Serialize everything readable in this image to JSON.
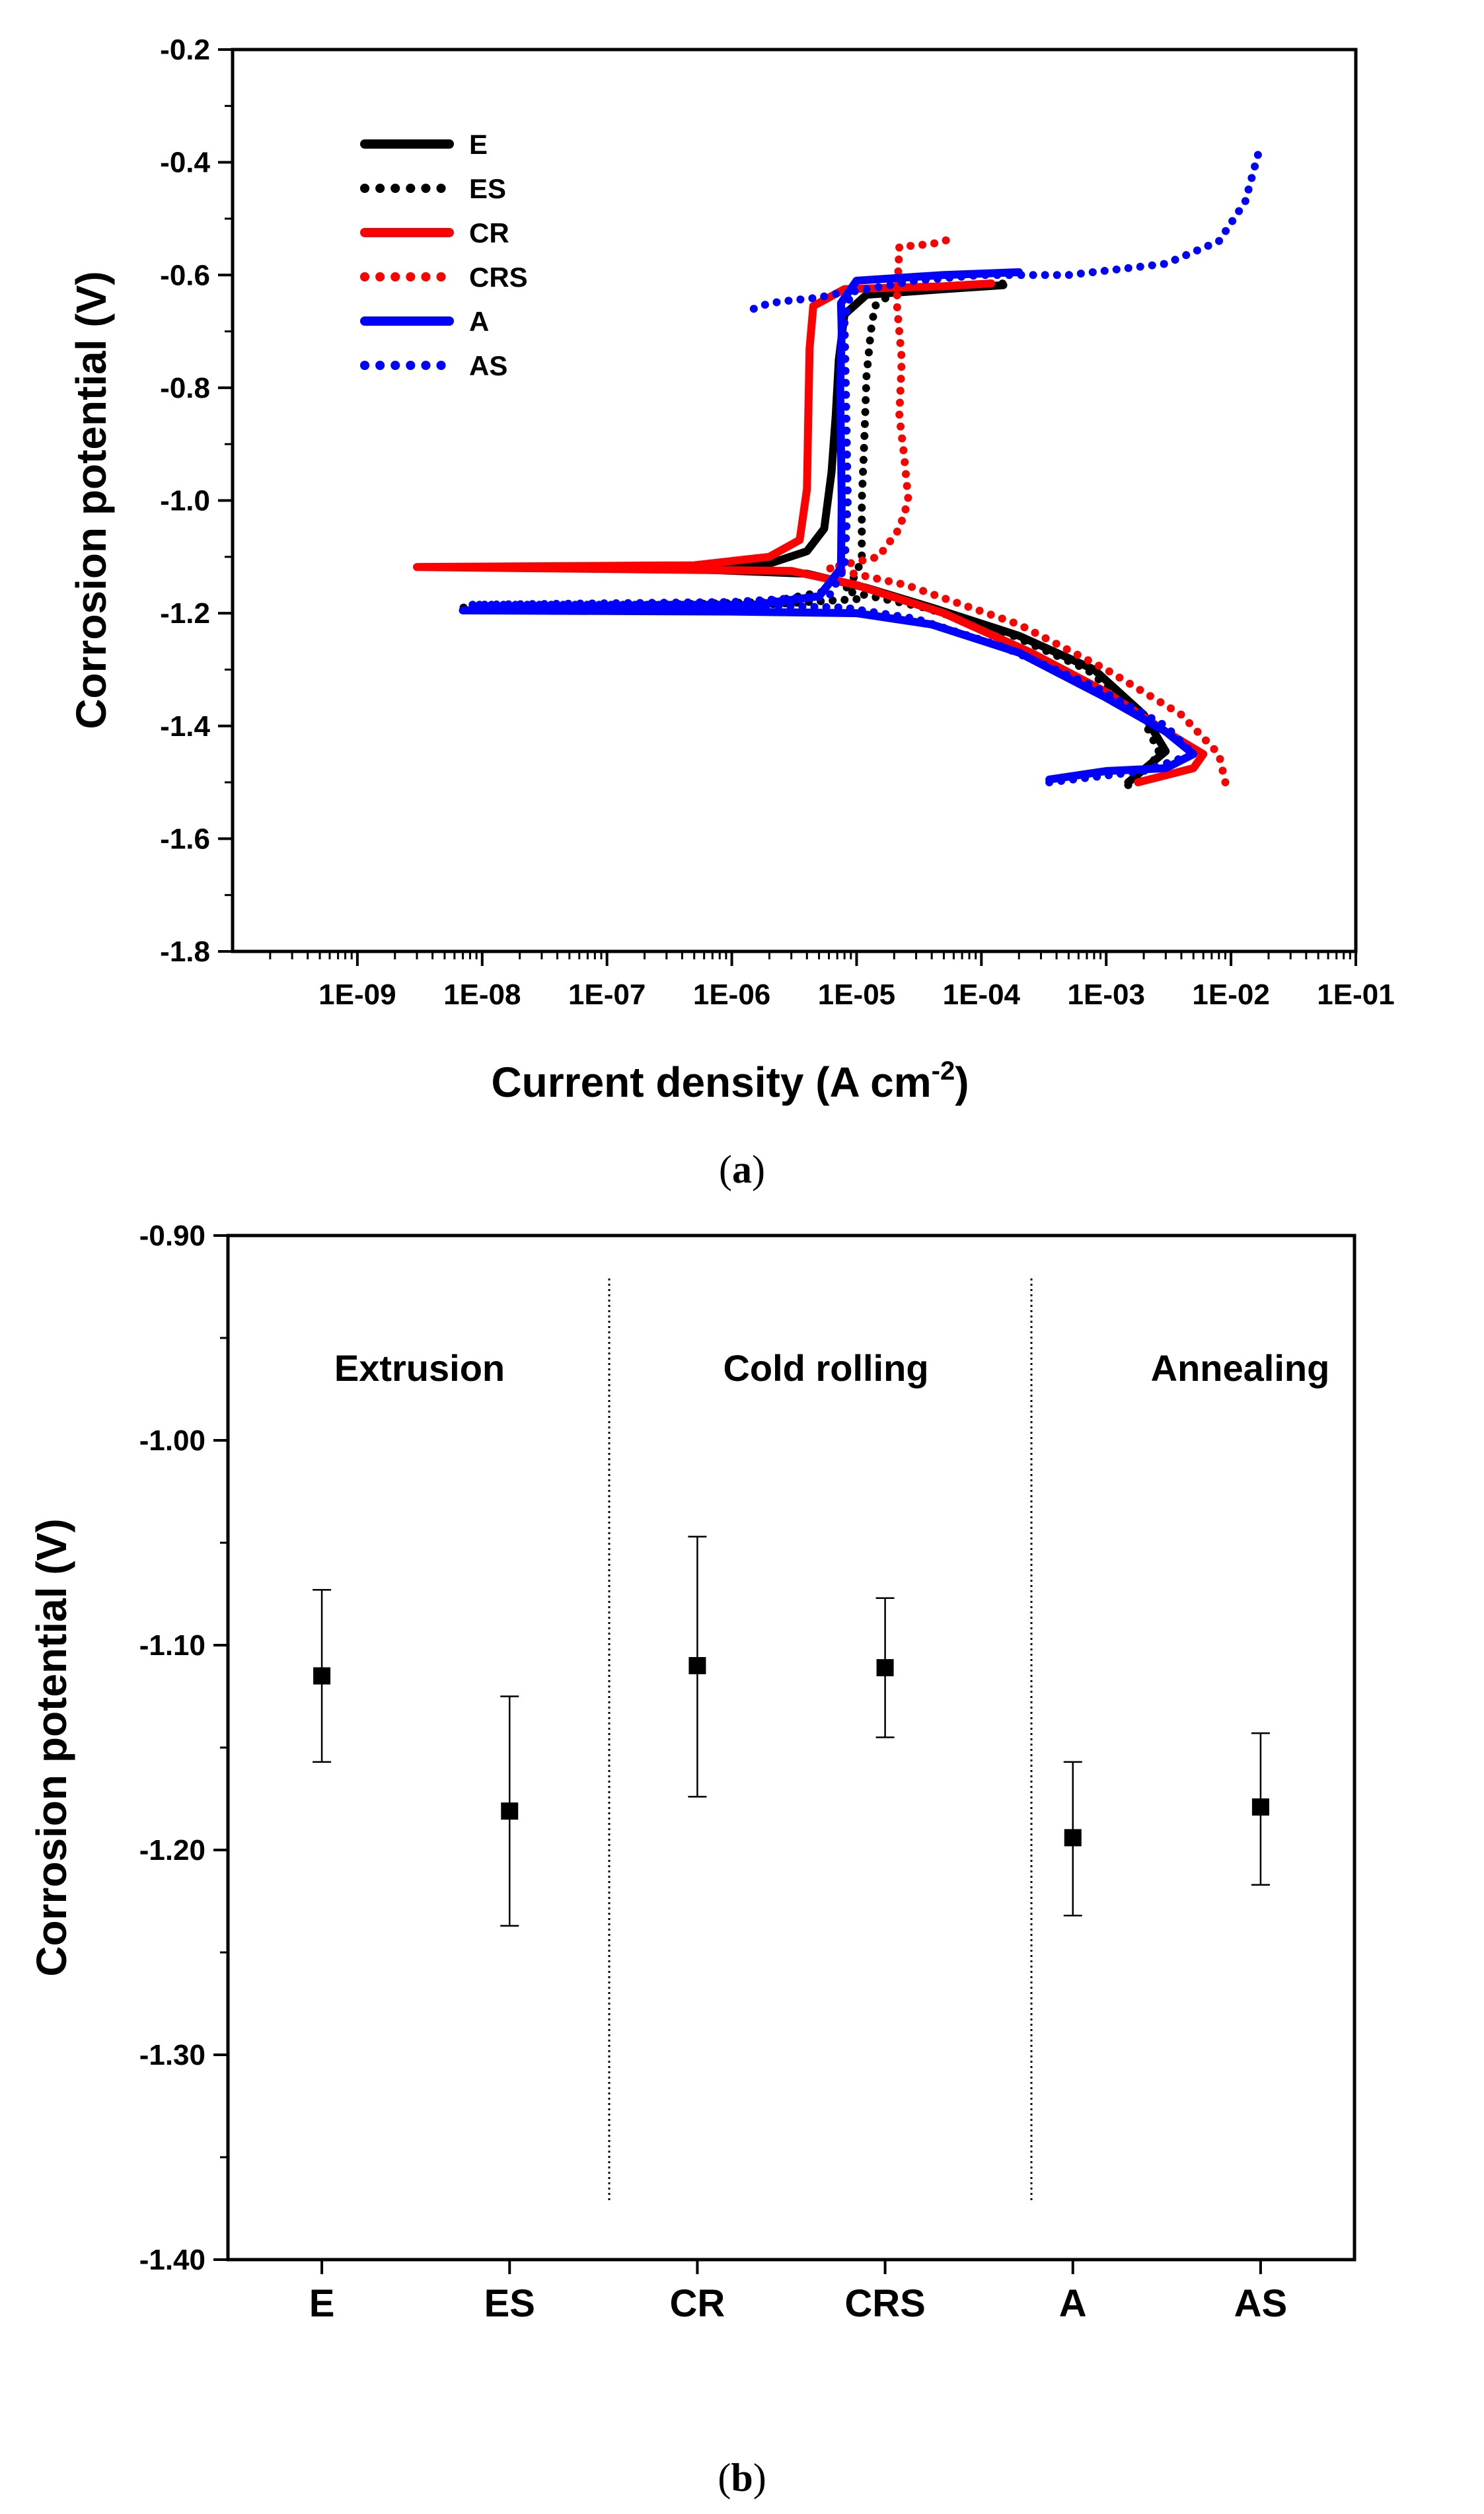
{
  "colors": {
    "E": "#000000",
    "ES": "#000000",
    "CR": "#ff0000",
    "CRS": "#ff0000",
    "A": "#0000ff",
    "AS": "#0000ff",
    "axis": "#000000"
  },
  "chart_data": [
    {
      "panel": "a",
      "caption": {
        "open": "(",
        "letter": "a",
        "close": ")"
      },
      "type": "line",
      "xlabel": "Current density (A cm",
      "xlabel_sup": "-2",
      "xlabel_end": ")",
      "ylabel": "Corrosion potential (V)",
      "xscale": "log",
      "xlim": [
        1e-10,
        0.1
      ],
      "ylim": [
        -1.8,
        -0.2
      ],
      "xticks": [
        1e-09,
        1e-08,
        1e-07,
        1e-06,
        1e-05,
        0.0001,
        0.001,
        0.01,
        0.1
      ],
      "xtick_labels": [
        "1E-09",
        "1E-08",
        "1E-07",
        "1E-06",
        "1E-05",
        "1E-04",
        "1E-03",
        "1E-02",
        "1E-01"
      ],
      "yticks": [
        -1.8,
        -1.6,
        -1.4,
        -1.2,
        -1.0,
        -0.8,
        -0.6,
        -0.4,
        -0.2
      ],
      "ytick_labels": [
        "-1.8",
        "-1.6",
        "-1.4",
        "-1.2",
        "-1.0",
        "-0.8",
        "-0.6",
        "-0.4",
        "-0.2"
      ],
      "legend_position": "top-left",
      "series": [
        {
          "name": "E",
          "style": "solid",
          "points": [
            [
              0.0015,
              -1.5
            ],
            [
              0.003,
              -1.445
            ],
            [
              0.002,
              -1.38
            ],
            [
              0.0008,
              -1.3
            ],
            [
              0.0002,
              -1.24
            ],
            [
              4e-05,
              -1.19
            ],
            [
              1.2e-05,
              -1.155
            ],
            [
              4e-06,
              -1.13
            ],
            [
              5e-07,
              -1.122
            ],
            [
              3e-08,
              -1.12
            ],
            [
              8e-07,
              -1.118
            ],
            [
              2e-06,
              -1.112
            ],
            [
              4e-06,
              -1.09
            ],
            [
              5.5e-06,
              -1.05
            ],
            [
              6.3e-06,
              -0.95
            ],
            [
              6.8e-06,
              -0.85
            ],
            [
              7.2e-06,
              -0.75
            ],
            [
              8e-06,
              -0.67
            ],
            [
              1.2e-05,
              -0.635
            ],
            [
              5e-05,
              -0.625
            ],
            [
              0.00015,
              -0.618
            ]
          ]
        },
        {
          "name": "ES",
          "style": "dotted",
          "points": [
            [
              0.0015,
              -1.505
            ],
            [
              0.0027,
              -1.45
            ],
            [
              0.0019,
              -1.38
            ],
            [
              0.0007,
              -1.3
            ],
            [
              0.00018,
              -1.24
            ],
            [
              3.5e-05,
              -1.19
            ],
            [
              8e-06,
              -1.16
            ],
            [
              1e-05,
              -1.13
            ],
            [
              1.1e-05,
              -1.1
            ],
            [
              1.1e-05,
              -1.0
            ],
            [
              1.15e-05,
              -0.9
            ],
            [
              1.2e-05,
              -0.78
            ],
            [
              1.3e-05,
              -0.7
            ],
            [
              1.4e-05,
              -0.655
            ],
            [
              2e-05,
              -0.63
            ],
            [
              6e-05,
              -0.62
            ],
            [
              0.00015,
              -0.615
            ]
          ]
        },
        {
          "name": "ES-low",
          "style": "dotted",
          "color_key": "ES",
          "points": [
            [
              1e-05,
              -1.175
            ],
            [
              1e-06,
              -1.188
            ],
            [
              1e-07,
              -1.19
            ],
            [
              7e-09,
              -1.19
            ],
            [
              1e-07,
              -1.187
            ],
            [
              2e-06,
              -1.18
            ],
            [
              6e-06,
              -1.16
            ]
          ]
        },
        {
          "name": "CR",
          "style": "solid",
          "points": [
            [
              0.0018,
              -1.5
            ],
            [
              0.005,
              -1.475
            ],
            [
              0.006,
              -1.45
            ],
            [
              0.003,
              -1.41
            ],
            [
              0.001,
              -1.34
            ],
            [
              0.00025,
              -1.27
            ],
            [
              5e-05,
              -1.2
            ],
            [
              1e-05,
              -1.15
            ],
            [
              3e-06,
              -1.125
            ],
            [
              3e-09,
              -1.118
            ],
            [
              5e-07,
              -1.115
            ],
            [
              2e-06,
              -1.1
            ],
            [
              3.5e-06,
              -1.07
            ],
            [
              4e-06,
              -0.98
            ],
            [
              4.1e-06,
              -0.85
            ],
            [
              4.2e-06,
              -0.73
            ],
            [
              4.5e-06,
              -0.655
            ],
            [
              8e-06,
              -0.625
            ],
            [
              5e-05,
              -0.62
            ],
            [
              0.00012,
              -0.615
            ]
          ]
        },
        {
          "name": "CRS",
          "style": "dotted",
          "points": [
            [
              0.009,
              -1.5
            ],
            [
              0.008,
              -1.45
            ],
            [
              0.004,
              -1.38
            ],
            [
              0.001,
              -1.3
            ],
            [
              0.0002,
              -1.22
            ],
            [
              2.5e-05,
              -1.15
            ],
            [
              6e-06,
              -1.12
            ],
            [
              1.5e-05,
              -1.1
            ],
            [
              2.2e-05,
              -1.05
            ],
            [
              2.6e-05,
              -1.0
            ],
            [
              2.4e-05,
              -0.92
            ],
            [
              2.2e-05,
              -0.85
            ],
            [
              2.3e-05,
              -0.75
            ],
            [
              2.1e-05,
              -0.65
            ],
            [
              2.2e-05,
              -0.55
            ],
            [
              4e-05,
              -0.545
            ],
            [
              6e-05,
              -0.535
            ]
          ]
        },
        {
          "name": "A",
          "style": "solid",
          "points": [
            [
              0.00035,
              -1.495
            ],
            [
              0.001,
              -1.48
            ],
            [
              0.003,
              -1.475
            ],
            [
              0.005,
              -1.45
            ],
            [
              0.003,
              -1.41
            ],
            [
              0.001,
              -1.35
            ],
            [
              0.0002,
              -1.27
            ],
            [
              4e-05,
              -1.22
            ],
            [
              1e-05,
              -1.2
            ],
            [
              1e-06,
              -1.197
            ],
            [
              7e-09,
              -1.195
            ],
            [
              1e-06,
              -1.19
            ],
            [
              5e-06,
              -1.17
            ],
            [
              7.5e-06,
              -1.12
            ],
            [
              7.6e-06,
              -1.0
            ],
            [
              7.5e-06,
              -0.9
            ],
            [
              7.4e-06,
              -0.8
            ],
            [
              7.6e-06,
              -0.7
            ],
            [
              7.5e-06,
              -0.65
            ],
            [
              1e-05,
              -0.61
            ],
            [
              5e-05,
              -0.6
            ],
            [
              0.0002,
              -0.595
            ]
          ]
        },
        {
          "name": "AS",
          "style": "dotted",
          "points": [
            [
              0.00035,
              -1.5
            ],
            [
              0.002,
              -1.48
            ],
            [
              0.005,
              -1.45
            ],
            [
              0.003,
              -1.4
            ],
            [
              0.0008,
              -1.33
            ],
            [
              0.00015,
              -1.26
            ],
            [
              3e-05,
              -1.21
            ],
            [
              8e-06,
              -1.19
            ],
            [
              1e-06,
              -1.185
            ],
            [
              8e-09,
              -1.185
            ],
            [
              1e-06,
              -1.18
            ],
            [
              6e-06,
              -1.17
            ],
            [
              8e-06,
              -1.12
            ],
            [
              8.5e-06,
              -1.0
            ],
            [
              8.2e-06,
              -0.8
            ],
            [
              8e-06,
              -0.68
            ],
            [
              9e-06,
              -0.63
            ],
            [
              3e-05,
              -0.61
            ],
            [
              0.0001,
              -0.6
            ],
            [
              0.0005,
              -0.6
            ],
            [
              0.003,
              -0.58
            ],
            [
              0.008,
              -0.54
            ],
            [
              0.013,
              -0.47
            ],
            [
              0.017,
              -0.375
            ]
          ]
        },
        {
          "name": "AS-knee",
          "style": "dotted",
          "color_key": "AS",
          "points": [
            [
              1.5e-06,
              -0.66
            ],
            [
              2e-06,
              -0.65
            ],
            [
              3e-06,
              -0.645
            ],
            [
              5e-06,
              -0.64
            ],
            [
              8e-06,
              -0.63
            ]
          ]
        }
      ],
      "legend": [
        "E",
        "ES",
        "CR",
        "CRS",
        "A",
        "AS"
      ]
    },
    {
      "panel": "b",
      "caption": {
        "open": "(",
        "letter": "b",
        "close": ")"
      },
      "type": "scatter",
      "xlabel": "",
      "ylabel": "Corrosion potential (V)",
      "ylim": [
        -1.4,
        -0.9
      ],
      "yticks": [
        -1.4,
        -1.3,
        -1.2,
        -1.1,
        -1.0,
        -0.9
      ],
      "ytick_labels": [
        "-1.40",
        "-1.30",
        "-1.20",
        "-1.10",
        "-1.00",
        "-0.90"
      ],
      "categories": [
        "E",
        "ES",
        "CR",
        "CRS",
        "A",
        "AS"
      ],
      "values": [
        -1.115,
        -1.181,
        -1.11,
        -1.111,
        -1.194,
        -1.179
      ],
      "error_low": [
        -1.157,
        -1.237,
        -1.174,
        -1.145,
        -1.232,
        -1.217
      ],
      "error_high": [
        -1.073,
        -1.125,
        -1.047,
        -1.077,
        -1.157,
        -1.143
      ],
      "groups": [
        {
          "label": "Extrusion",
          "categories": [
            "E",
            "ES"
          ]
        },
        {
          "label": "Cold rolling",
          "categories": [
            "CR",
            "CRS"
          ]
        },
        {
          "label": "Annealing",
          "categories": [
            "A",
            "AS"
          ]
        }
      ]
    }
  ]
}
